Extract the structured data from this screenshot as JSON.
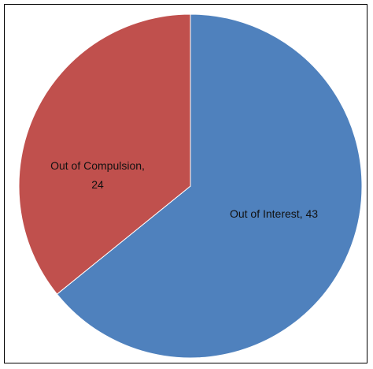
{
  "chart_data": {
    "type": "pie",
    "title": "",
    "slices": [
      {
        "label": "Out of Interest",
        "value": 43,
        "color": "#4F81BD",
        "data_label": [
          "Out of Interest, 43"
        ]
      },
      {
        "label": "Out of Compulsion",
        "value": 24,
        "color": "#C0504D",
        "data_label": [
          "Out of Compulsion,",
          "24"
        ]
      }
    ]
  }
}
